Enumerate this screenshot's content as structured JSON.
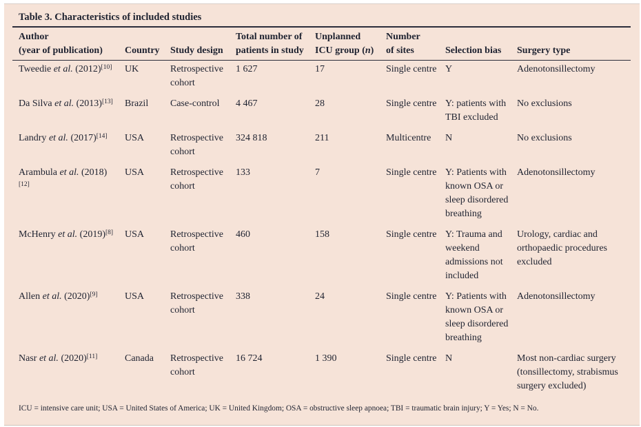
{
  "page": {
    "panel_bg": "#f6e3d8",
    "text_color": "#1e2230",
    "rule_color": "#2a2c3a"
  },
  "title": "Table 3. Characteristics of included studies",
  "header": {
    "columns": [
      {
        "id": "author",
        "line1": "Author",
        "line2": [
          {
            "t": "(year of publication)"
          }
        ]
      },
      {
        "id": "country",
        "line1": "",
        "line2": [
          {
            "t": "Country"
          }
        ]
      },
      {
        "id": "design",
        "line1": "",
        "line2": [
          {
            "t": "Study design"
          }
        ]
      },
      {
        "id": "patients",
        "line1": "Total number of",
        "line2": [
          {
            "t": "patients in study"
          }
        ]
      },
      {
        "id": "icu",
        "line1": "Unplanned",
        "line2": [
          {
            "t": "ICU group ("
          },
          {
            "t": "n",
            "i": true
          },
          {
            "t": ")"
          }
        ]
      },
      {
        "id": "sites",
        "line1": "Number",
        "line2": [
          {
            "t": "of sites"
          }
        ]
      },
      {
        "id": "bias",
        "line1": "",
        "line2": [
          {
            "t": "Selection bias"
          }
        ]
      },
      {
        "id": "surgery",
        "line1": "",
        "line2": [
          {
            "t": "Surgery type"
          }
        ]
      }
    ]
  },
  "rows": [
    {
      "author": [
        {
          "t": "Tweedie "
        },
        {
          "t": "et al.",
          "i": true
        },
        {
          "t": " (2012)"
        },
        {
          "t": "[10]",
          "sup": true
        }
      ],
      "country": "UK",
      "design": "Retrospective cohort",
      "patients": "1 627",
      "icu": "17",
      "sites": "Single centre",
      "bias": "Y",
      "surgery": "Adenotonsillectomy"
    },
    {
      "author": [
        {
          "t": "Da Silva "
        },
        {
          "t": "et al.",
          "i": true
        },
        {
          "t": " (2013)"
        },
        {
          "t": "[13]",
          "sup": true
        }
      ],
      "country": "Brazil",
      "design": "Case-control",
      "patients": "4 467",
      "icu": "28",
      "sites": "Single centre",
      "bias": "Y: patients with TBI excluded",
      "surgery": "No exclusions"
    },
    {
      "author": [
        {
          "t": "Landry "
        },
        {
          "t": "et al.",
          "i": true
        },
        {
          "t": " (2017)"
        },
        {
          "t": "[14]",
          "sup": true
        }
      ],
      "country": "USA",
      "design": "Retrospective cohort",
      "patients": "324 818",
      "icu": "211",
      "sites": "Multicentre",
      "bias": "N",
      "surgery": "No exclusions"
    },
    {
      "author": [
        {
          "t": "Arambula "
        },
        {
          "t": "et al.",
          "i": true
        },
        {
          "t": " (2018)"
        },
        {
          "t": "[12]",
          "sup": true
        }
      ],
      "country": "USA",
      "design": "Retrospective cohort",
      "patients": "133",
      "icu": "7",
      "sites": "Single centre",
      "bias": "Y: Patients with known OSA or sleep disordered breathing",
      "surgery": "Adenotonsillectomy"
    },
    {
      "author": [
        {
          "t": "McHenry "
        },
        {
          "t": "et al.",
          "i": true
        },
        {
          "t": " (2019)"
        },
        {
          "t": "[8]",
          "sup": true
        }
      ],
      "country": "USA",
      "design": "Retrospective cohort",
      "patients": "460",
      "icu": "158",
      "sites": "Single centre",
      "bias": "Y: Trauma and weekend admissions not included",
      "surgery": "Urology, cardiac and orthopaedic procedures excluded"
    },
    {
      "author": [
        {
          "t": "Allen "
        },
        {
          "t": "et al.",
          "i": true
        },
        {
          "t": " (2020)"
        },
        {
          "t": "[9]",
          "sup": true
        }
      ],
      "country": "USA",
      "design": "Retrospective cohort",
      "patients": "338",
      "icu": "24",
      "sites": "Single centre",
      "bias": "Y: Patients with known OSA or sleep disordered breathing",
      "surgery": "Adenotonsillectomy"
    },
    {
      "author": [
        {
          "t": "Nasr "
        },
        {
          "t": "et al.",
          "i": true
        },
        {
          "t": " (2020)"
        },
        {
          "t": "[11]",
          "sup": true
        }
      ],
      "country": "Canada",
      "design": "Retrospective cohort",
      "patients": "16 724",
      "icu": "1 390",
      "sites": "Single centre",
      "bias": "N",
      "surgery": "Most non-cardiac surgery (tonsillectomy, strabismus surgery excluded)"
    }
  ],
  "footnote": "ICU = intensive care unit; USA = United States of America; UK = United Kingdom; OSA = obstructive sleep apnoea; TBI = traumatic brain injury; Y = Yes; N = No."
}
